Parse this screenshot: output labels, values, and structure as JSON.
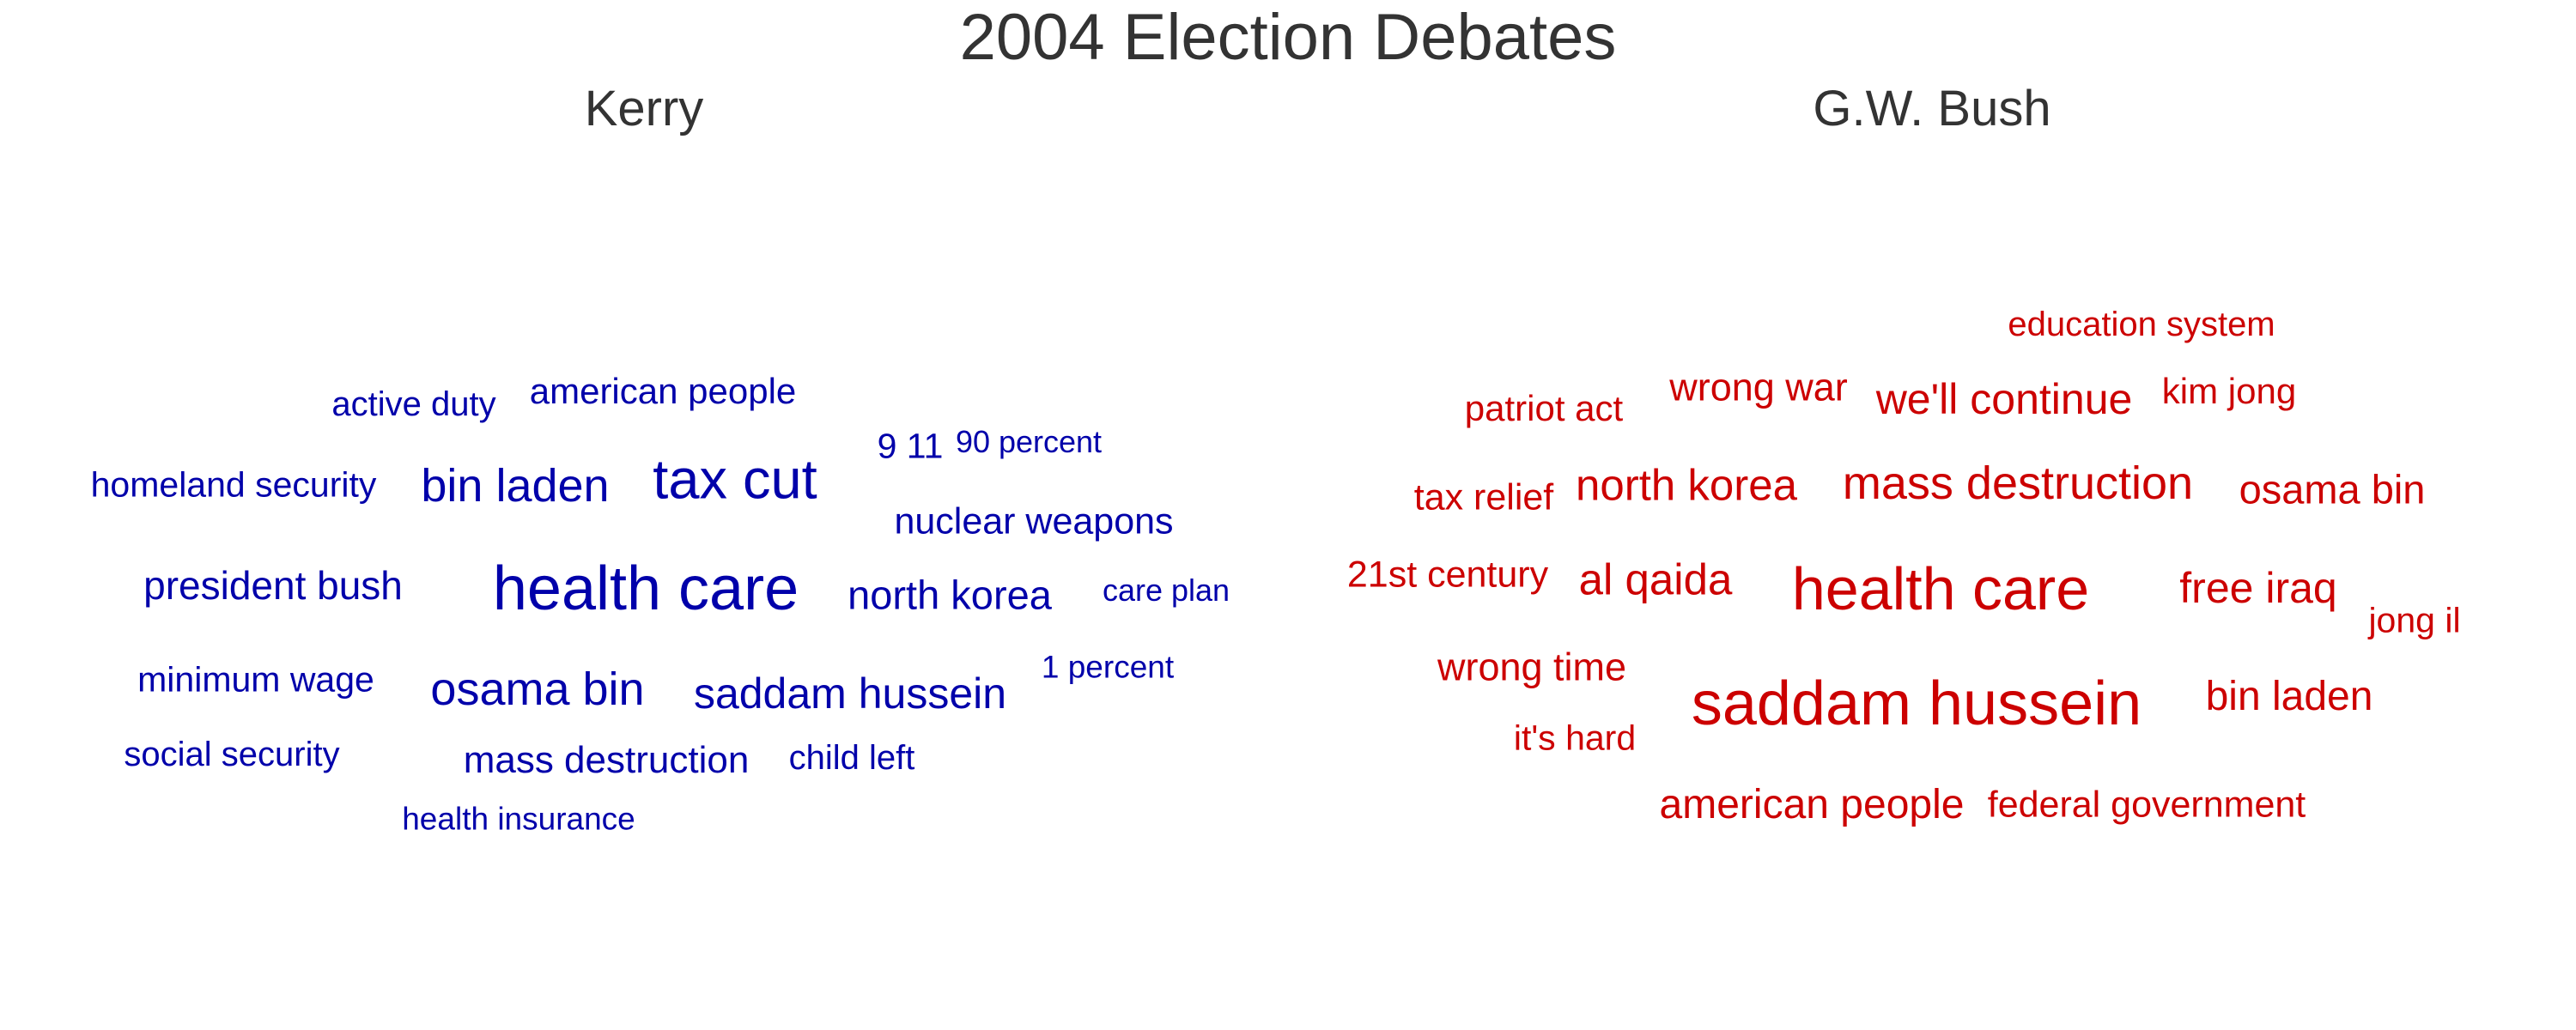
{
  "chart_data": {
    "type": "wordcloud",
    "title": "2004 Election Debates",
    "colors": {
      "Kerry": "#0000aa",
      "G.W. Bush": "#cc0000"
    },
    "panels": [
      {
        "name": "Kerry",
        "words": [
          {
            "text": "health care",
            "weight": 1.0
          },
          {
            "text": "tax cut",
            "weight": 0.88
          },
          {
            "text": "bin laden",
            "weight": 0.68
          },
          {
            "text": "osama bin",
            "weight": 0.68
          },
          {
            "text": "saddam hussein",
            "weight": 0.6
          },
          {
            "text": "north korea",
            "weight": 0.56
          },
          {
            "text": "president bush",
            "weight": 0.54
          },
          {
            "text": "mass destruction",
            "weight": 0.5
          },
          {
            "text": "nuclear weapons",
            "weight": 0.48
          },
          {
            "text": "american people",
            "weight": 0.46
          },
          {
            "text": "homeland security",
            "weight": 0.44
          },
          {
            "text": "minimum wage",
            "weight": 0.44
          },
          {
            "text": "9 11",
            "weight": 0.44
          },
          {
            "text": "active duty",
            "weight": 0.42
          },
          {
            "text": "social security",
            "weight": 0.42
          },
          {
            "text": "child left",
            "weight": 0.42
          },
          {
            "text": "health insurance",
            "weight": 0.38
          },
          {
            "text": "1 percent",
            "weight": 0.38
          },
          {
            "text": "90 percent",
            "weight": 0.36
          },
          {
            "text": "care plan",
            "weight": 0.36
          }
        ]
      },
      {
        "name": "G.W. Bush",
        "words": [
          {
            "text": "saddam hussein",
            "weight": 1.0
          },
          {
            "text": "health care",
            "weight": 0.96
          },
          {
            "text": "mass destruction",
            "weight": 0.68
          },
          {
            "text": "north korea",
            "weight": 0.62
          },
          {
            "text": "al qaida",
            "weight": 0.62
          },
          {
            "text": "free iraq",
            "weight": 0.6
          },
          {
            "text": "we'll continue",
            "weight": 0.6
          },
          {
            "text": "bin laden",
            "weight": 0.58
          },
          {
            "text": "american people",
            "weight": 0.58
          },
          {
            "text": "osama bin",
            "weight": 0.56
          },
          {
            "text": "wrong war",
            "weight": 0.52
          },
          {
            "text": "wrong time",
            "weight": 0.52
          },
          {
            "text": "21st century",
            "weight": 0.48
          },
          {
            "text": "federal government",
            "weight": 0.48
          },
          {
            "text": "tax relief",
            "weight": 0.48
          },
          {
            "text": "patriot act",
            "weight": 0.46
          },
          {
            "text": "kim jong",
            "weight": 0.46
          },
          {
            "text": "it's hard",
            "weight": 0.44
          },
          {
            "text": "jong il",
            "weight": 0.44
          },
          {
            "text": "education system",
            "weight": 0.42
          }
        ]
      }
    ]
  }
}
